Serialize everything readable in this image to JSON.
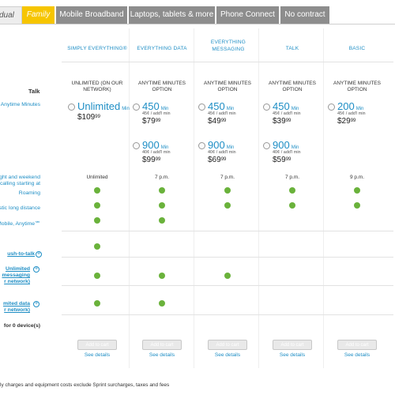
{
  "tabs": [
    {
      "label": "dual"
    },
    {
      "label": "Family"
    },
    {
      "label": "Mobile Broadband"
    },
    {
      "label": "Laptops, tablets & more"
    },
    {
      "label": "Phone Connect"
    },
    {
      "label": "No contract"
    }
  ],
  "plans": [
    {
      "name": "SIMPLY EVERYTHING®",
      "sub": "UNLIMITED (ON OUR NETWORK)"
    },
    {
      "name": "EVERYTHING DATA",
      "sub": "ANYTIME MINUTES OPTION"
    },
    {
      "name": "EVERYTHING MESSAGING",
      "sub": "ANYTIME MINUTES OPTION"
    },
    {
      "name": "TALK",
      "sub": "ANYTIME MINUTES OPTION"
    },
    {
      "name": "BASIC",
      "sub": "ANYTIME MINUTES OPTION"
    }
  ],
  "rows": {
    "talk": "Talk",
    "anytime": "Anytime Minutes",
    "night1": "ght and weekend",
    "night2": "calling starting at",
    "roaming": "Roaming",
    "ld": "stic long distance",
    "mobile": "Mobile, Anytime℠",
    "ptt": "ush-to-talk",
    "msg1": "Unlimited",
    "msg2": "messaging",
    "msg3": "r network)",
    "data1": "mited data",
    "data2": "r network)",
    "devices": "for 0 device(s)"
  },
  "options": {
    "unlimited": {
      "mins": "Unlimited",
      "unit": "Min",
      "price": "$109",
      "cents": "99"
    },
    "ed450": {
      "mins": "450",
      "unit": "Min",
      "addl": "45¢ / add'l min",
      "price": "$79",
      "cents": "99"
    },
    "em450": {
      "mins": "450",
      "unit": "Min",
      "addl": "45¢ / add'l min",
      "price": "$49",
      "cents": "99"
    },
    "t450": {
      "mins": "450",
      "unit": "Min",
      "addl": "45¢ / add'l min",
      "price": "$39",
      "cents": "99"
    },
    "b200": {
      "mins": "200",
      "unit": "Min",
      "addl": "45¢ / add'l min",
      "price": "$29",
      "cents": "99"
    },
    "ed900": {
      "mins": "900",
      "unit": "Min",
      "addl": "40¢ / add'l min",
      "price": "$99",
      "cents": "99"
    },
    "em900": {
      "mins": "900",
      "unit": "Min",
      "addl": "40¢ / add'l min",
      "price": "$69",
      "cents": "99"
    },
    "t900": {
      "mins": "900",
      "unit": "Min",
      "addl": "40¢ / add'l min",
      "price": "$59",
      "cents": "99"
    }
  },
  "night_values": [
    "Unlimited",
    "7 p.m.",
    "7 p.m.",
    "7 p.m.",
    "9 p.m."
  ],
  "add_to_cart": "Add to cart",
  "see_details": "See details",
  "footnote": "ly charges and equipment costs exclude Sprint surcharges, taxes and fees",
  "colors": {
    "accent": "#1e8ec5",
    "active_tab": "#f6c500",
    "check": "#6ab23b"
  }
}
